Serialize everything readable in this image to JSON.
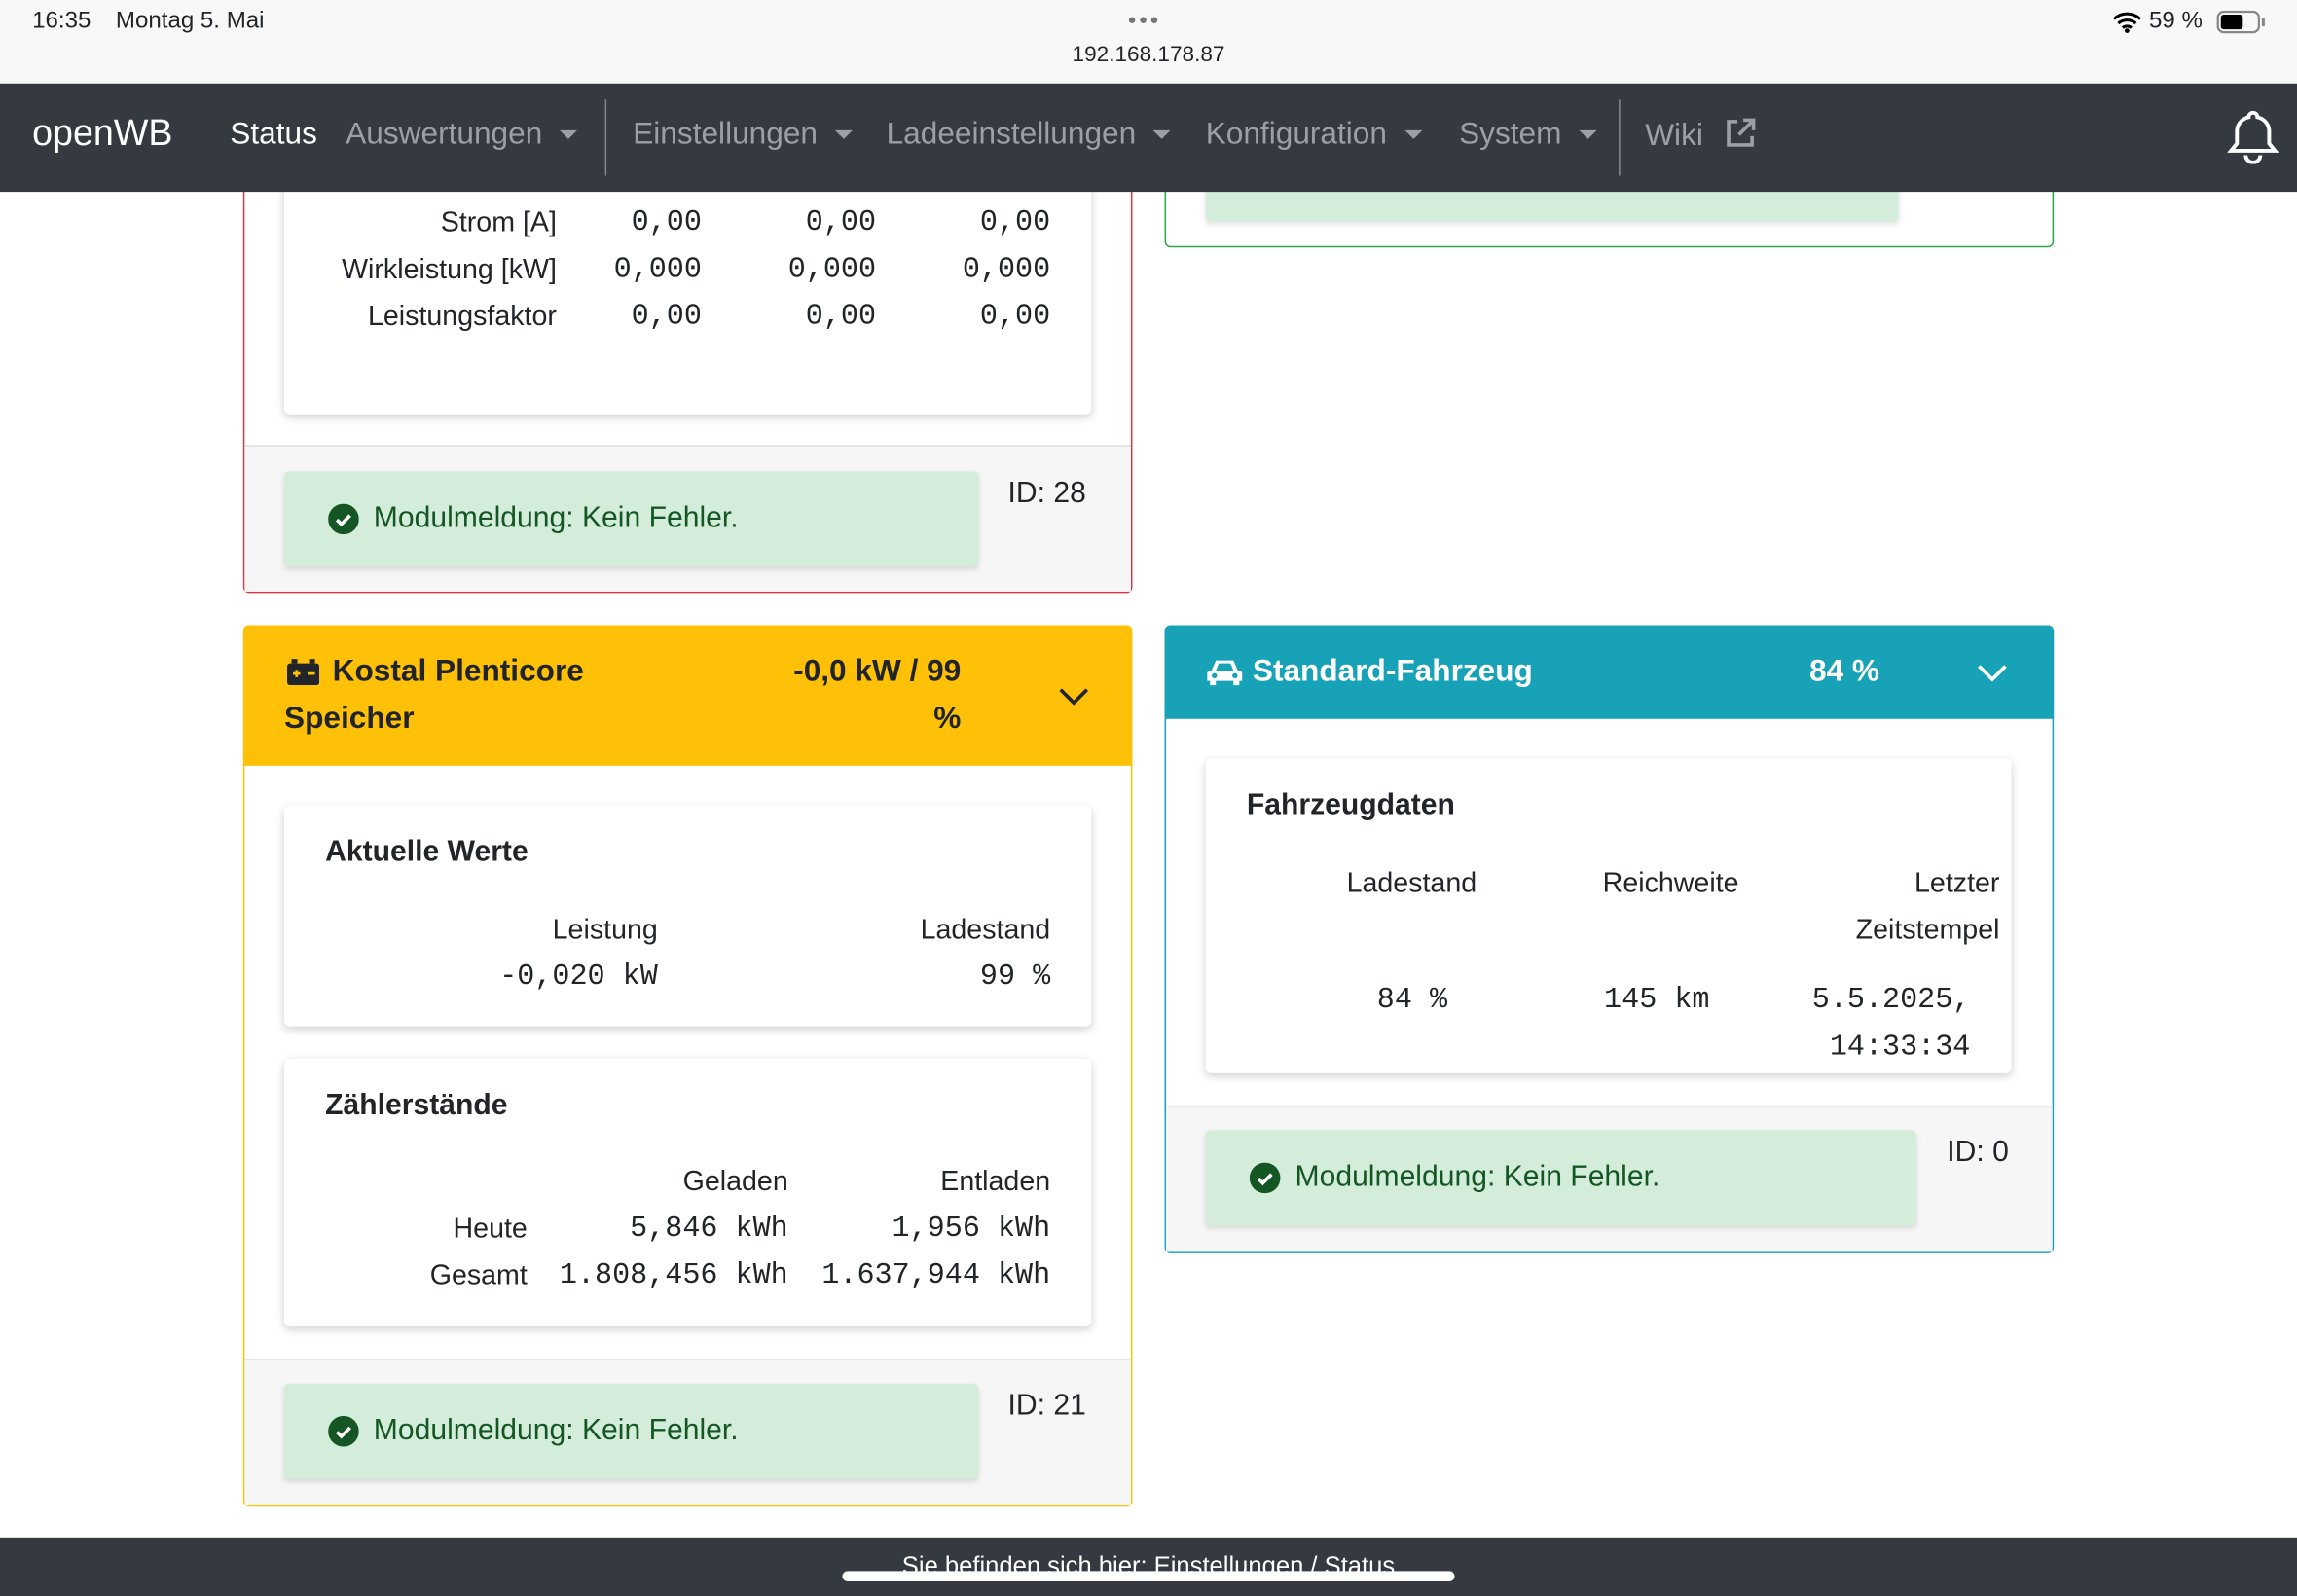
{
  "status_bar": {
    "time": "16:35",
    "date": "Montag 5. Mai",
    "url": "192.168.178.87",
    "battery": "59 %"
  },
  "navbar": {
    "brand": "openWB",
    "items": [
      "Status",
      "Auswertungen",
      "Einstellungen",
      "Ladeeinstellungen",
      "Konfiguration",
      "System",
      "Wiki"
    ]
  },
  "counter_card": {
    "rows": [
      [
        "Strom [A]",
        "0,00",
        "0,00",
        "0,00"
      ],
      [
        "Wirkleistung [kW]",
        "0,000",
        "0,000",
        "0,000"
      ],
      [
        "Leistungsfaktor",
        "0,00",
        "0,00",
        "0,00"
      ]
    ],
    "message": "Modulmeldung: Kein Fehler.",
    "id": "ID: 28"
  },
  "battery_card": {
    "title": "Kostal Plenticore Speicher",
    "summary": "-0,0 kW / 99 %",
    "sections": [
      {
        "title": "Aktuelle Werte",
        "header": [
          "Leistung",
          "Ladestand"
        ],
        "rows": [
          [
            "-0,020 kW",
            "99 %"
          ]
        ]
      },
      {
        "title": "Zählerstände",
        "header": [
          "Geladen",
          "Entladen"
        ],
        "rows": [
          [
            "Heute",
            "5,846 kWh",
            "1,956 kWh"
          ],
          [
            "Gesamt",
            "1.808,456 kWh",
            "1.637,944 kWh"
          ]
        ]
      }
    ],
    "message": "Modulmeldung: Kein Fehler.",
    "id": "ID: 21"
  },
  "vehicle_card": {
    "title": "Standard-Fahrzeug",
    "summary": "84 %",
    "sections": [
      {
        "title": "Fahrzeugdaten",
        "header": [
          "Ladestand",
          "Reichweite",
          "Letzter Zeitstempel"
        ],
        "rows": [
          [
            "84 %",
            "145 km",
            "5.5.2025, 14:33:34"
          ]
        ]
      }
    ],
    "message": "Modulmeldung: Kein Fehler.",
    "id": "ID: 0"
  },
  "footer": {
    "breadcrumb": "Sie befinden sich hier: Einstellungen / Status"
  }
}
